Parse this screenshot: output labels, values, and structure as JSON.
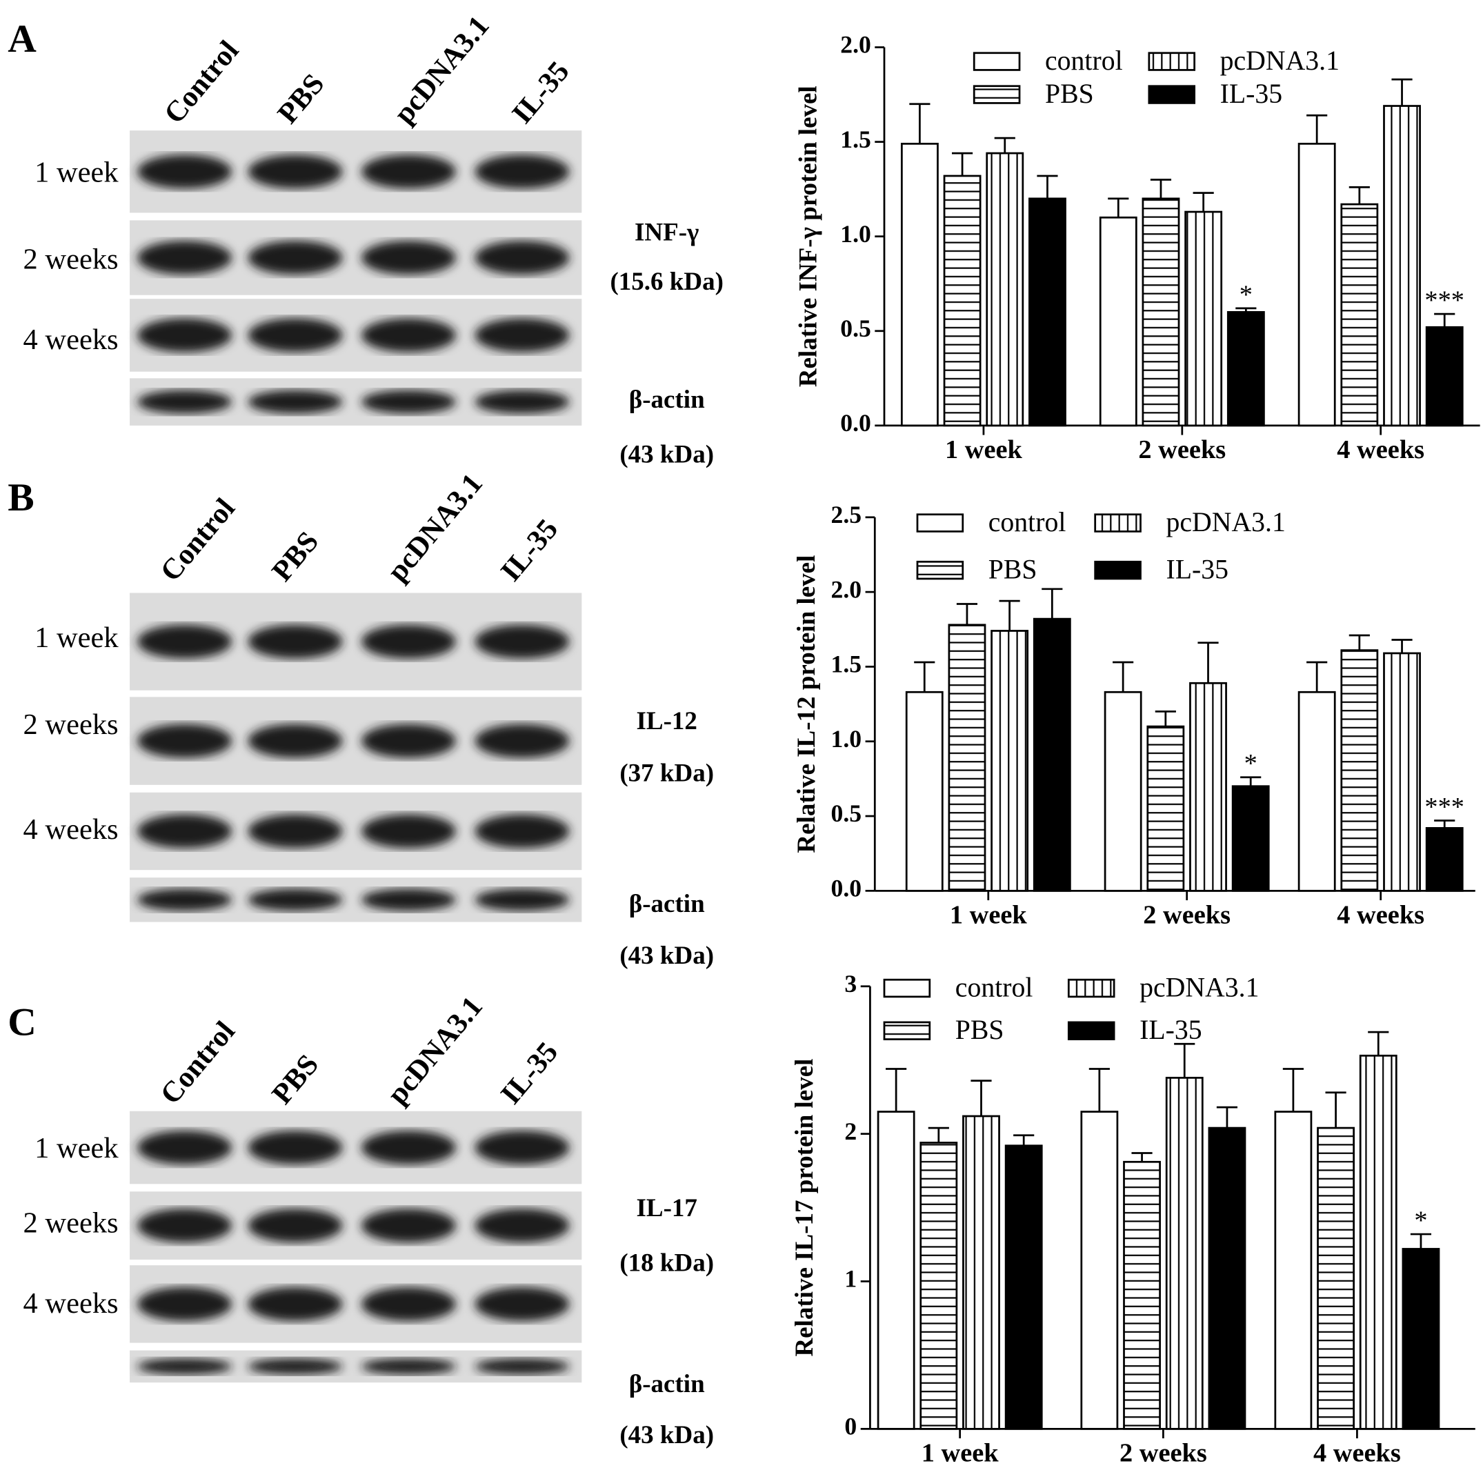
{
  "panels": [
    {
      "letter": "A",
      "lanes": [
        "Control",
        "PBS",
        "pcDNA3.1",
        "IL-35"
      ],
      "rows": [
        "1 week",
        "2 weeks",
        "4 weeks"
      ],
      "target": "INF-γ",
      "target_size": "(15.6 kDa)",
      "control": "β-actin",
      "control_size": "(43 kDa)"
    },
    {
      "letter": "B",
      "lanes": [
        "Control",
        "PBS",
        "pcDNA3.1",
        "IL-35"
      ],
      "rows": [
        "1 week",
        "2 weeks",
        "4 weeks"
      ],
      "target": "IL-12",
      "target_size": "(37 kDa)",
      "control": "β-actin",
      "control_size": "(43 kDa)"
    },
    {
      "letter": "C",
      "lanes": [
        "Control",
        "PBS",
        "pcDNA3.1",
        "IL-35"
      ],
      "rows": [
        "1 week",
        "2 weeks",
        "4 weeks"
      ],
      "target": "IL-17",
      "target_size": "(18 kDa)",
      "control": "β-actin",
      "control_size": "(43 kDa)"
    }
  ],
  "chart_data": [
    {
      "type": "bar",
      "ylabel": "Relative INF-γ protein level",
      "categories": [
        "1 week",
        "2 weeks",
        "4 weeks"
      ],
      "ylim": [
        0,
        2
      ],
      "yticks": [
        {
          "value": 0,
          "label": "0.0"
        },
        {
          "value": 0.5,
          "label": "0.5"
        },
        {
          "value": 1,
          "label": "1.0"
        },
        {
          "value": 1.5,
          "label": "1.5"
        },
        {
          "value": 2,
          "label": "2.0"
        }
      ],
      "series": [
        {
          "name": "control",
          "color": "#000000",
          "pattern": "none",
          "values": [
            1.49,
            1.1,
            1.49
          ],
          "errors": [
            0.21,
            0.1,
            0.15
          ]
        },
        {
          "name": "PBS",
          "color": "#000000",
          "pattern": "horizontal",
          "values": [
            1.32,
            1.2,
            1.17
          ],
          "errors": [
            0.12,
            0.1,
            0.09
          ]
        },
        {
          "name": "pcDNA3.1",
          "color": "#000000",
          "pattern": "vertical",
          "values": [
            1.44,
            1.13,
            1.69
          ],
          "errors": [
            0.08,
            0.1,
            0.14
          ]
        },
        {
          "name": "IL-35",
          "color": "#000000",
          "pattern": "solid",
          "values": [
            1.2,
            0.6,
            0.52
          ],
          "errors": [
            0.12,
            0.02,
            0.07
          ],
          "annotations": [
            null,
            "*",
            "***"
          ]
        }
      ]
    },
    {
      "type": "bar",
      "ylabel": "Relative IL-12 protein level",
      "categories": [
        "1 week",
        "2 weeks",
        "4 weeks"
      ],
      "ylim": [
        0,
        2.5
      ],
      "yticks": [
        {
          "value": 0,
          "label": "0.0"
        },
        {
          "value": 0.5,
          "label": "0.5"
        },
        {
          "value": 1,
          "label": "1.0"
        },
        {
          "value": 1.5,
          "label": "1.5"
        },
        {
          "value": 2,
          "label": "2.0"
        },
        {
          "value": 2.5,
          "label": "2.5"
        }
      ],
      "series": [
        {
          "name": "control",
          "color": "#000000",
          "pattern": "none",
          "values": [
            1.33,
            1.33,
            1.33
          ],
          "errors": [
            0.2,
            0.2,
            0.2
          ]
        },
        {
          "name": "PBS",
          "color": "#000000",
          "pattern": "horizontal",
          "values": [
            1.78,
            1.1,
            1.61
          ],
          "errors": [
            0.14,
            0.1,
            0.1
          ]
        },
        {
          "name": "pcDNA3.1",
          "color": "#000000",
          "pattern": "vertical",
          "values": [
            1.74,
            1.39,
            1.59
          ],
          "errors": [
            0.2,
            0.27,
            0.09
          ]
        },
        {
          "name": "IL-35",
          "color": "#000000",
          "pattern": "solid",
          "values": [
            1.82,
            0.7,
            0.42
          ],
          "errors": [
            0.2,
            0.06,
            0.05
          ],
          "annotations": [
            null,
            "*",
            "***"
          ]
        }
      ]
    },
    {
      "type": "bar",
      "ylabel": "Relative IL-17 protein level",
      "categories": [
        "1 week",
        "2 weeks",
        "4 weeks"
      ],
      "ylim": [
        0,
        3
      ],
      "yticks": [
        0,
        1,
        2,
        3
      ],
      "series": [
        {
          "name": "control",
          "color": "#000000",
          "pattern": "none",
          "values": [
            2.15,
            2.15,
            2.15
          ],
          "errors": [
            0.29,
            0.29,
            0.29
          ]
        },
        {
          "name": "PBS",
          "color": "#000000",
          "pattern": "horizontal",
          "values": [
            1.94,
            1.81,
            2.04
          ],
          "errors": [
            0.1,
            0.06,
            0.24
          ]
        },
        {
          "name": "pcDNA3.1",
          "color": "#000000",
          "pattern": "vertical",
          "values": [
            2.12,
            2.38,
            2.53
          ],
          "errors": [
            0.24,
            0.23,
            0.16
          ]
        },
        {
          "name": "IL-35",
          "color": "#000000",
          "pattern": "solid",
          "values": [
            1.92,
            2.04,
            1.22
          ],
          "errors": [
            0.07,
            0.14,
            0.1
          ],
          "annotations": [
            null,
            null,
            "*"
          ]
        }
      ]
    }
  ]
}
